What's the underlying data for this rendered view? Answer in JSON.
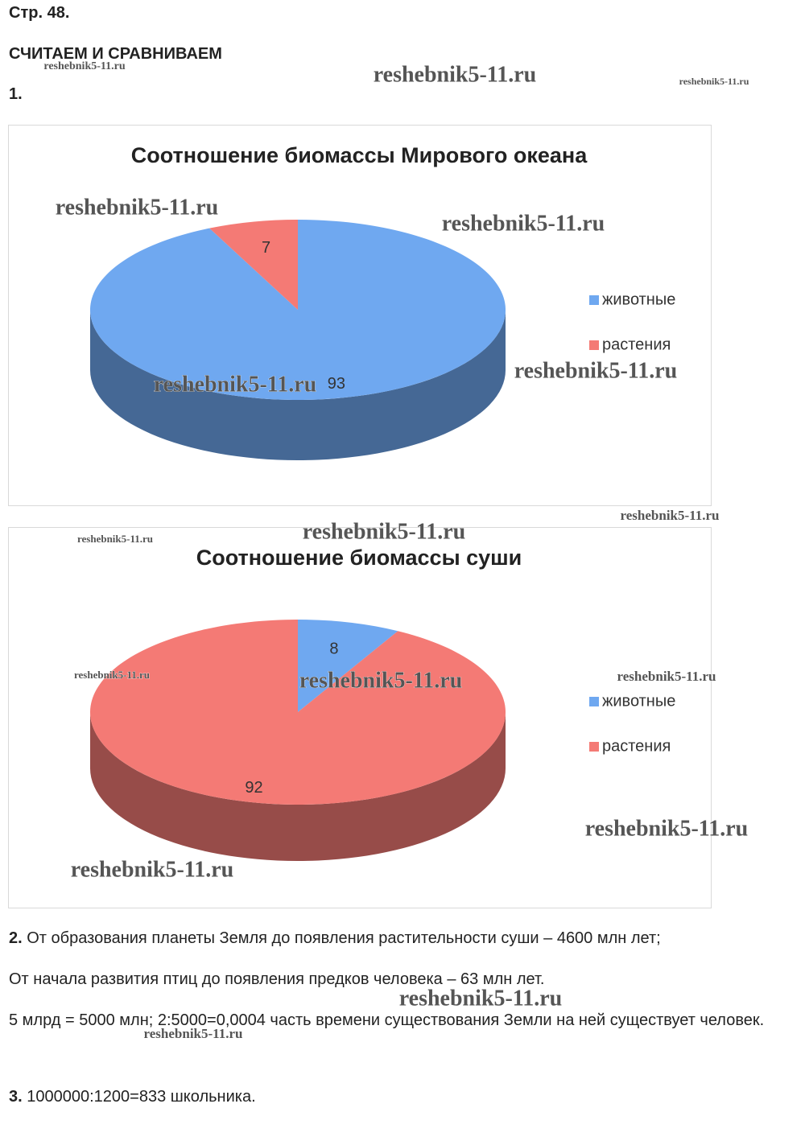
{
  "header": {
    "page": "Стр. 48.",
    "section": "СЧИТАЕМ И СРАВНИВАЕМ",
    "task1": "1."
  },
  "chart_data": [
    {
      "type": "pie",
      "title": "Соотношение биомассы Мирового океана",
      "categories": [
        "животные",
        "растения"
      ],
      "values": [
        93,
        7
      ],
      "colors": [
        "#6fa8f0",
        "#f47a75"
      ]
    },
    {
      "type": "pie",
      "title": "Соотношение биомассы суши",
      "categories": [
        "животные",
        "растения"
      ],
      "values": [
        8,
        92
      ],
      "colors": [
        "#6fa8f0",
        "#f47a75"
      ]
    }
  ],
  "tasks": [
    {
      "number": "2.",
      "text": "От образования планеты Земля до появления растительности суши – 4600 млн лет;"
    },
    {
      "text": "От начала развития птиц до появления предков человека – 63 млн лет."
    },
    {
      "text": "5 млрд = 5000 млн; 2:5000=0,0004 часть времени существования Земли на ней существует человек."
    },
    {
      "number": "3.",
      "text": "1000000:1200=833 школьника."
    }
  ],
  "watermarks": [
    "reshebnik5-11.ru",
    "reshebnik5-11.ru",
    "reshebnik5-11.ru",
    "reshebnik5-11.ru",
    "reshebnik5-11.ru",
    "reshebnik5-11.ru",
    "reshebnik5-11.ru",
    "reshebnik5-11.ru",
    "reshebnik5-11.ru",
    "reshebnik5-11.ru",
    "reshebnik5-11.ru",
    "reshebnik5-11.ru",
    "reshebnik5-11.ru",
    "reshebnik5-11.ru",
    "reshebnik5-11.ru",
    "reshebnik5-11.ru",
    "reshebnik5-11.ru"
  ]
}
